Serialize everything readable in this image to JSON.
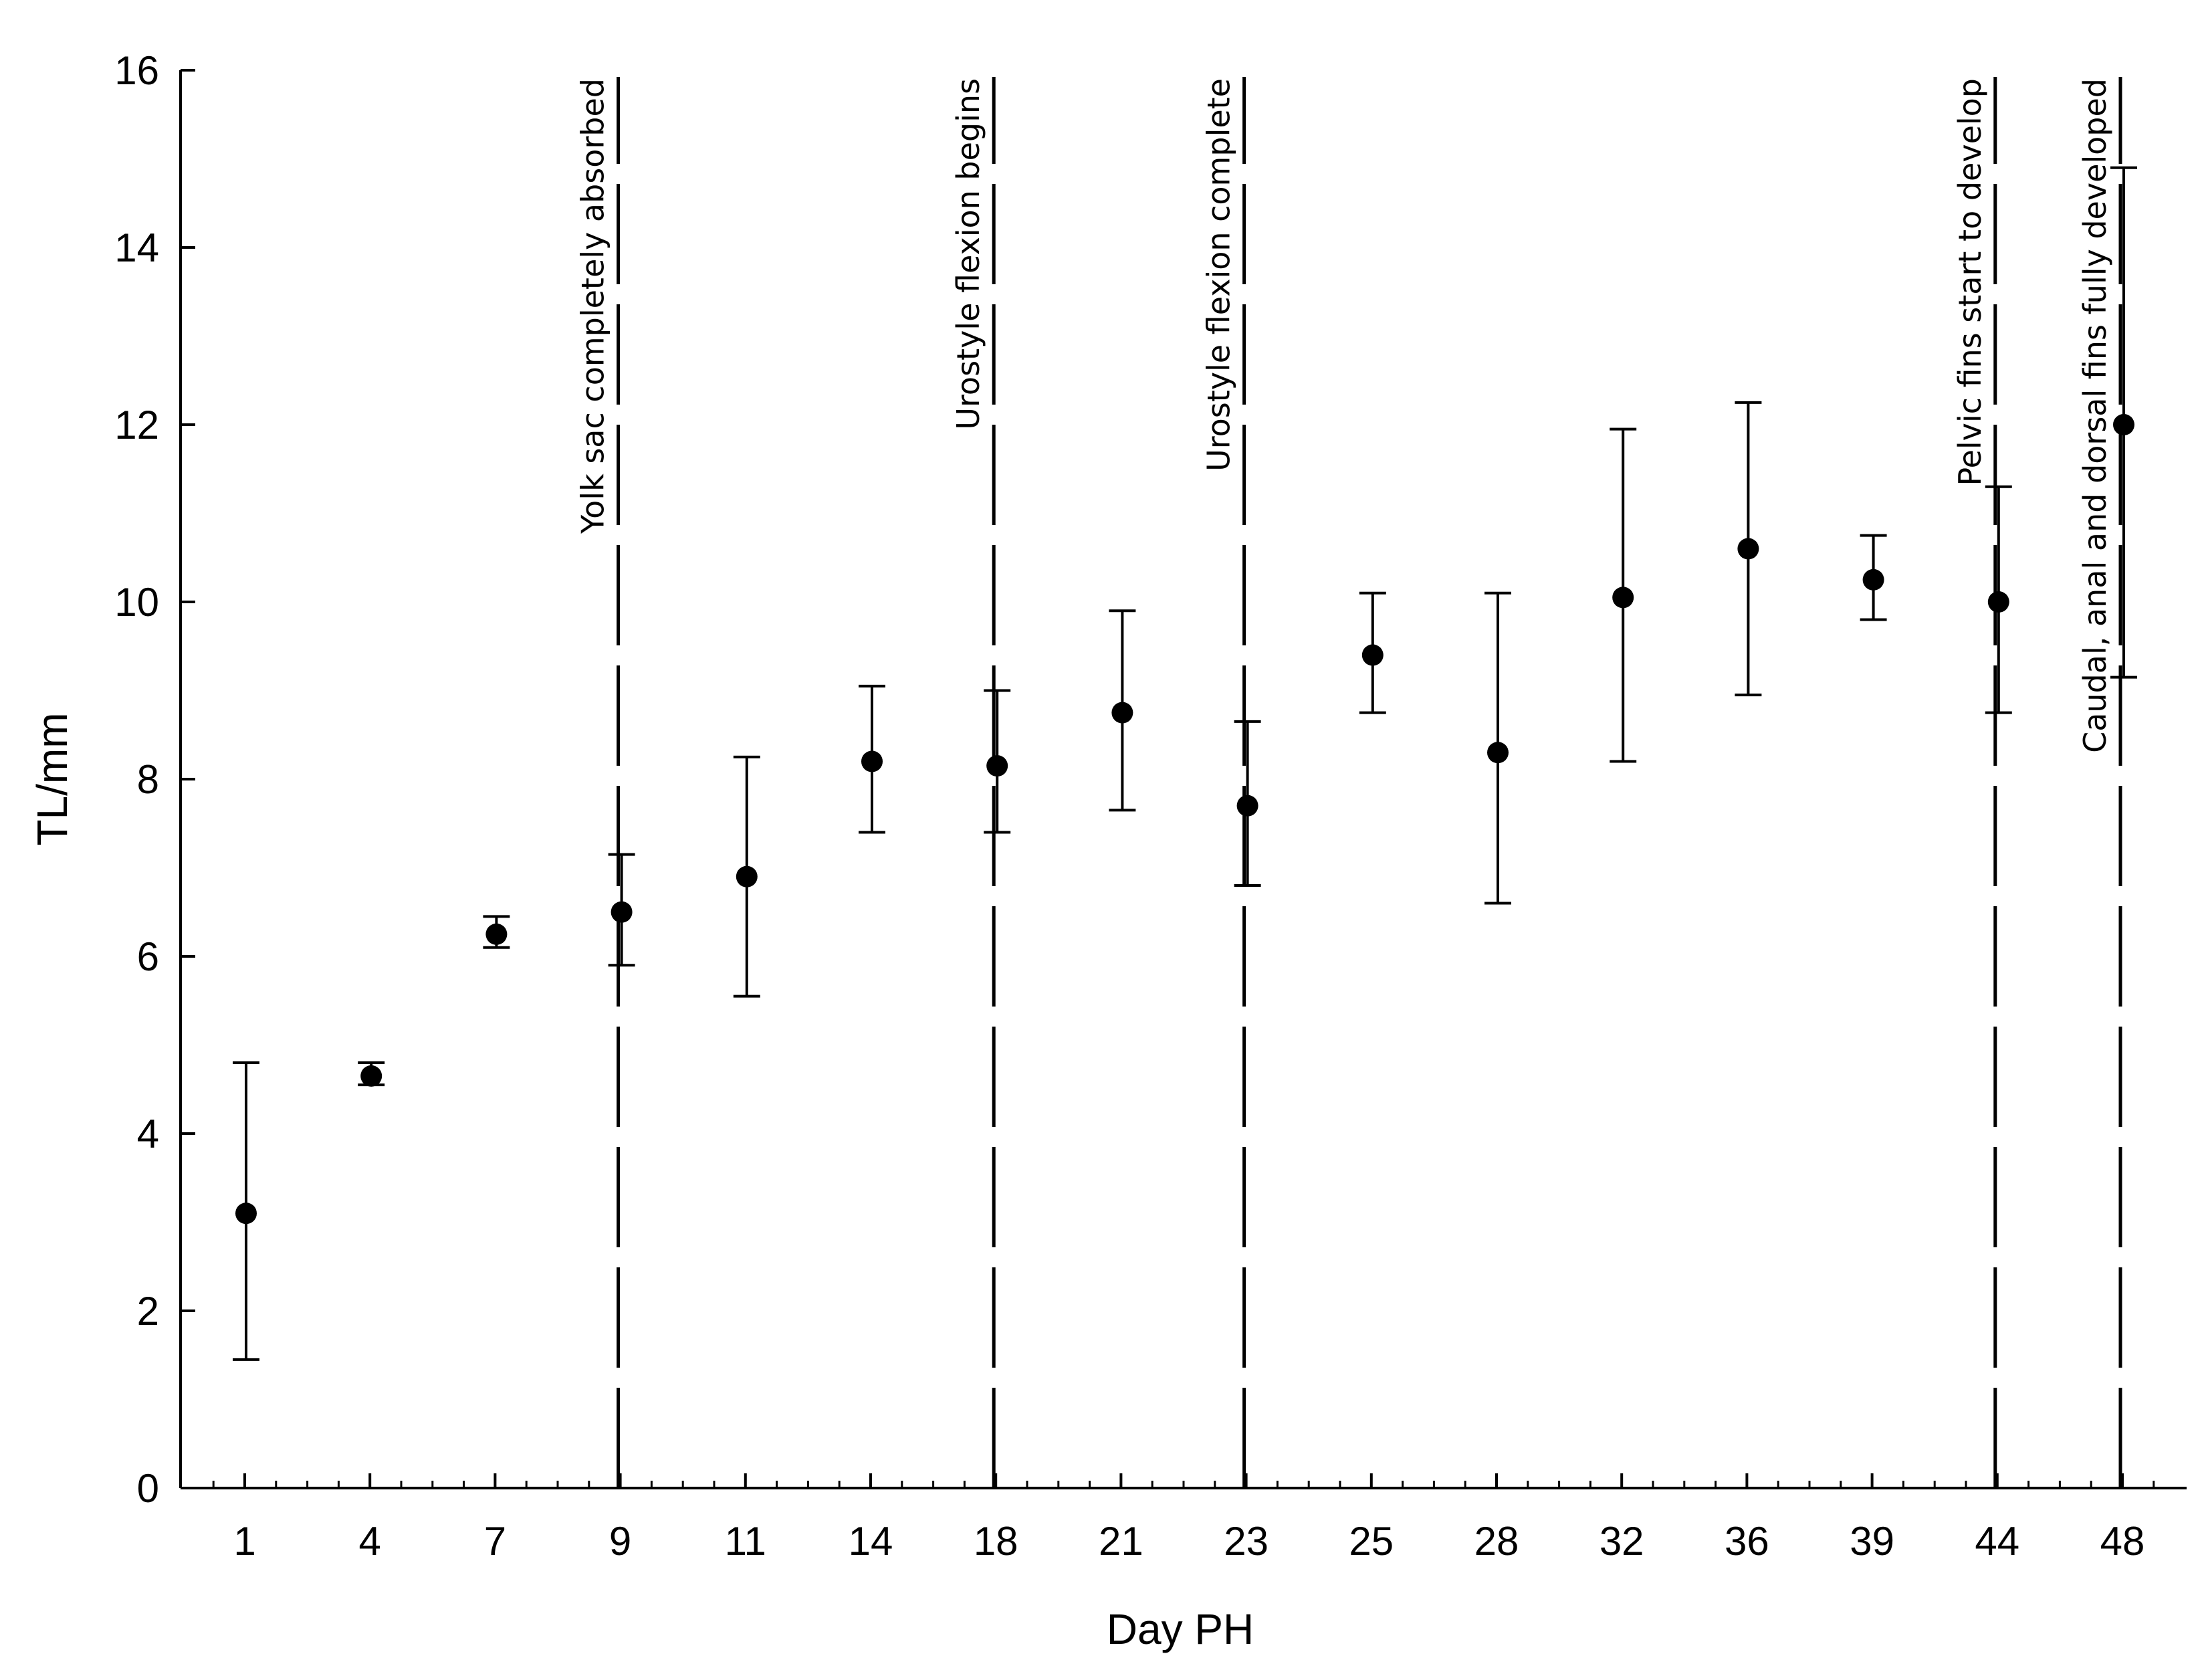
{
  "chart_data": {
    "type": "scatter",
    "xlabel": "Day PH",
    "ylabel": "TL/mm",
    "ylim": [
      0,
      16
    ],
    "yticks": [
      0,
      2,
      4,
      6,
      8,
      10,
      12,
      14,
      16
    ],
    "categories": [
      "1",
      "4",
      "7",
      "9",
      "11",
      "14",
      "18",
      "21",
      "23",
      "25",
      "28",
      "32",
      "36",
      "39",
      "44",
      "48"
    ],
    "series": [
      {
        "values": [
          3.1,
          4.65,
          6.25,
          6.5,
          6.9,
          8.2,
          8.15,
          8.75,
          7.7,
          9.4,
          8.3,
          10.05,
          10.6,
          10.25,
          10.0,
          12.0
        ],
        "err_low": [
          1.45,
          4.55,
          6.1,
          5.9,
          5.55,
          7.4,
          7.4,
          7.65,
          6.8,
          8.75,
          6.6,
          8.2,
          8.95,
          9.8,
          8.75,
          9.15
        ],
        "err_high": [
          4.8,
          4.8,
          6.45,
          7.15,
          8.25,
          9.05,
          9.0,
          9.9,
          8.65,
          10.1,
          10.1,
          11.95,
          12.25,
          10.75,
          11.3,
          14.9
        ]
      }
    ],
    "annotations": [
      {
        "at": "9",
        "text": "Yolk sac completely absorbed"
      },
      {
        "at": "18",
        "text": "Urostyle flexion begins"
      },
      {
        "at": "23",
        "text": "Urostyle flexion complete"
      },
      {
        "at": "44",
        "text": "Pelvic fins start to develop"
      },
      {
        "at": "48",
        "text": "Caudal, anal and dorsal fins fully developed"
      }
    ],
    "grid": false
  }
}
